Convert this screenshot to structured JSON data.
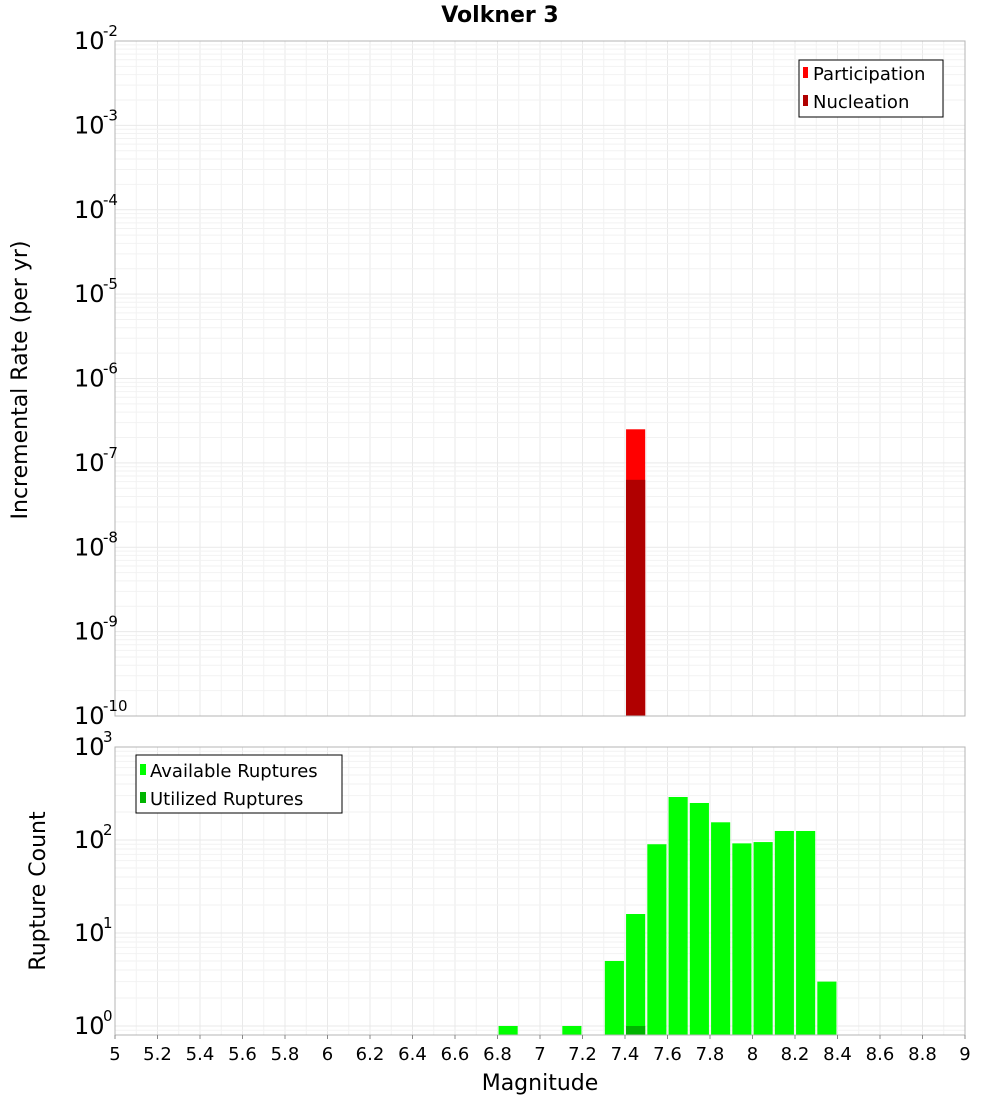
{
  "chart_data": [
    {
      "type": "bar",
      "title": "Volkner 3",
      "ylabel": "Incremental Rate (per yr)",
      "xlabel": "",
      "xlim": [
        5,
        9
      ],
      "ylim": [
        1e-10,
        0.01
      ],
      "yscale": "log",
      "grid": true,
      "legend_position": "top-right",
      "bar_width": 0.09,
      "ytick_exponents": [
        "-2",
        "-3",
        "-4",
        "-5",
        "-6",
        "-7",
        "-8",
        "-9",
        "-10"
      ],
      "ytick_base": "10",
      "series": [
        {
          "name": "Participation",
          "color": "#ff0000",
          "x": [
            7.45
          ],
          "values": [
            2.5e-07
          ]
        },
        {
          "name": "Nucleation",
          "color": "#b00000",
          "x": [
            7.45
          ],
          "values": [
            6.3e-08
          ]
        }
      ]
    },
    {
      "type": "bar",
      "title": "",
      "ylabel": "Rupture Count",
      "xlabel": "Magnitude",
      "xlim": [
        5,
        9
      ],
      "ylim": [
        0.8,
        1000
      ],
      "yscale": "log",
      "grid": true,
      "legend_position": "top-left",
      "bar_width": 0.09,
      "ytick_exponents": [
        "3",
        "2",
        "1",
        "0"
      ],
      "ytick_base": "10",
      "xtick_labels": [
        "5",
        "5.2",
        "5.4",
        "5.6",
        "5.8",
        "6",
        "6.2",
        "6.4",
        "6.6",
        "6.8",
        "7",
        "7.2",
        "7.4",
        "7.6",
        "7.8",
        "8",
        "8.2",
        "8.4",
        "8.6",
        "8.8",
        "9"
      ],
      "series": [
        {
          "name": "Available Ruptures",
          "color": "#00ff00",
          "x": [
            6.85,
            7.15,
            7.35,
            7.45,
            7.55,
            7.65,
            7.75,
            7.85,
            7.95,
            8.05,
            8.15,
            8.25,
            8.35
          ],
          "values": [
            1,
            1,
            5,
            16,
            90,
            290,
            250,
            155,
            92,
            95,
            125,
            125,
            3
          ]
        },
        {
          "name": "Utilized Ruptures",
          "color": "#00b400",
          "x": [
            7.45
          ],
          "values": [
            1
          ]
        }
      ]
    }
  ]
}
